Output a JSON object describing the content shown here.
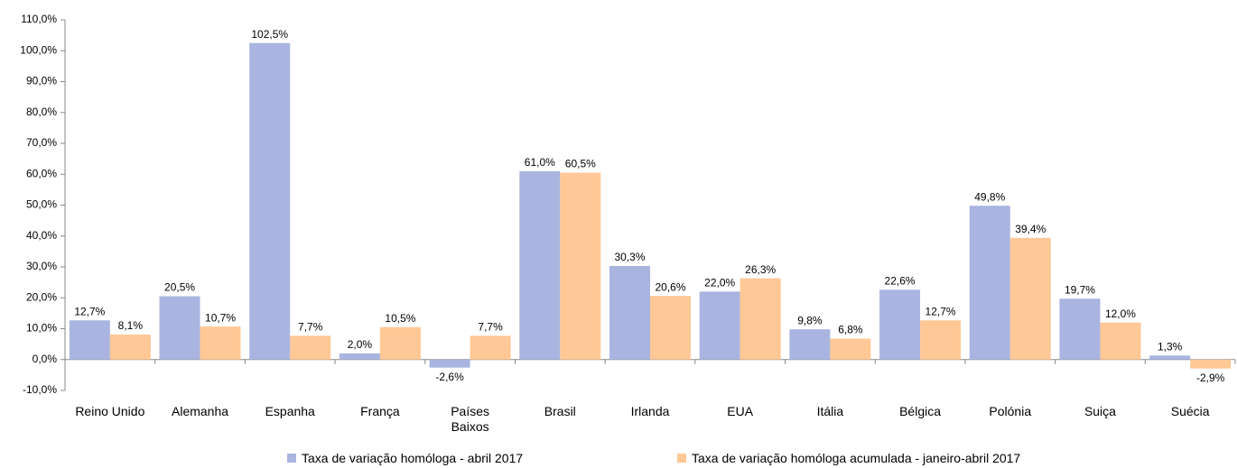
{
  "chart_data": {
    "type": "bar",
    "categories": [
      "Reino Unido",
      "Alemanha",
      "Espanha",
      "França",
      "Países Baixos",
      "Brasil",
      "Irlanda",
      "EUA",
      "Itália",
      "Bélgica",
      "Polónia",
      "Suiça",
      "Suécia"
    ],
    "series": [
      {
        "name": "Taxa de variação homóloga - abril 2017",
        "color": "#a9b4e0",
        "values": [
          12.7,
          20.5,
          102.5,
          2.0,
          -2.6,
          61.0,
          30.3,
          22.0,
          9.8,
          22.6,
          49.8,
          19.7,
          1.3
        ],
        "value_labels": [
          "12,7%",
          "20,5%",
          "102,5%",
          "2,0%",
          "-2,6%",
          "61,0%",
          "30,3%",
          "22,0%",
          "9,8%",
          "22,6%",
          "49,8%",
          "19,7%",
          "1,3%"
        ]
      },
      {
        "name": "Taxa de variação homóloga acumulada - janeiro-abril 2017",
        "color": "#ffc896",
        "values": [
          8.1,
          10.7,
          7.7,
          10.5,
          7.7,
          60.5,
          20.6,
          26.3,
          6.8,
          12.7,
          39.4,
          12.0,
          -2.9
        ],
        "value_labels": [
          "8,1%",
          "10,7%",
          "7,7%",
          "10,5%",
          "7,7%",
          "60,5%",
          "20,6%",
          "26,3%",
          "6,8%",
          "12,7%",
          "39,4%",
          "12,0%",
          "-2,9%"
        ]
      }
    ],
    "ylim": [
      -10,
      110
    ],
    "yticks": [
      {
        "value": -10,
        "label": "-10,0%"
      },
      {
        "value": 0,
        "label": "0,0%"
      },
      {
        "value": 10,
        "label": "10,0%"
      },
      {
        "value": 20,
        "label": "20,0%"
      },
      {
        "value": 30,
        "label": "30,0%"
      },
      {
        "value": 40,
        "label": "40,0%"
      },
      {
        "value": 50,
        "label": "50,0%"
      },
      {
        "value": 60,
        "label": "60,0%"
      },
      {
        "value": 70,
        "label": "70,0%"
      },
      {
        "value": 80,
        "label": "80,0%"
      },
      {
        "value": 90,
        "label": "90,0%"
      },
      {
        "value": 100,
        "label": "100,0%"
      },
      {
        "value": 110,
        "label": "110,0%"
      }
    ],
    "grid": false,
    "legend": "bottom"
  }
}
